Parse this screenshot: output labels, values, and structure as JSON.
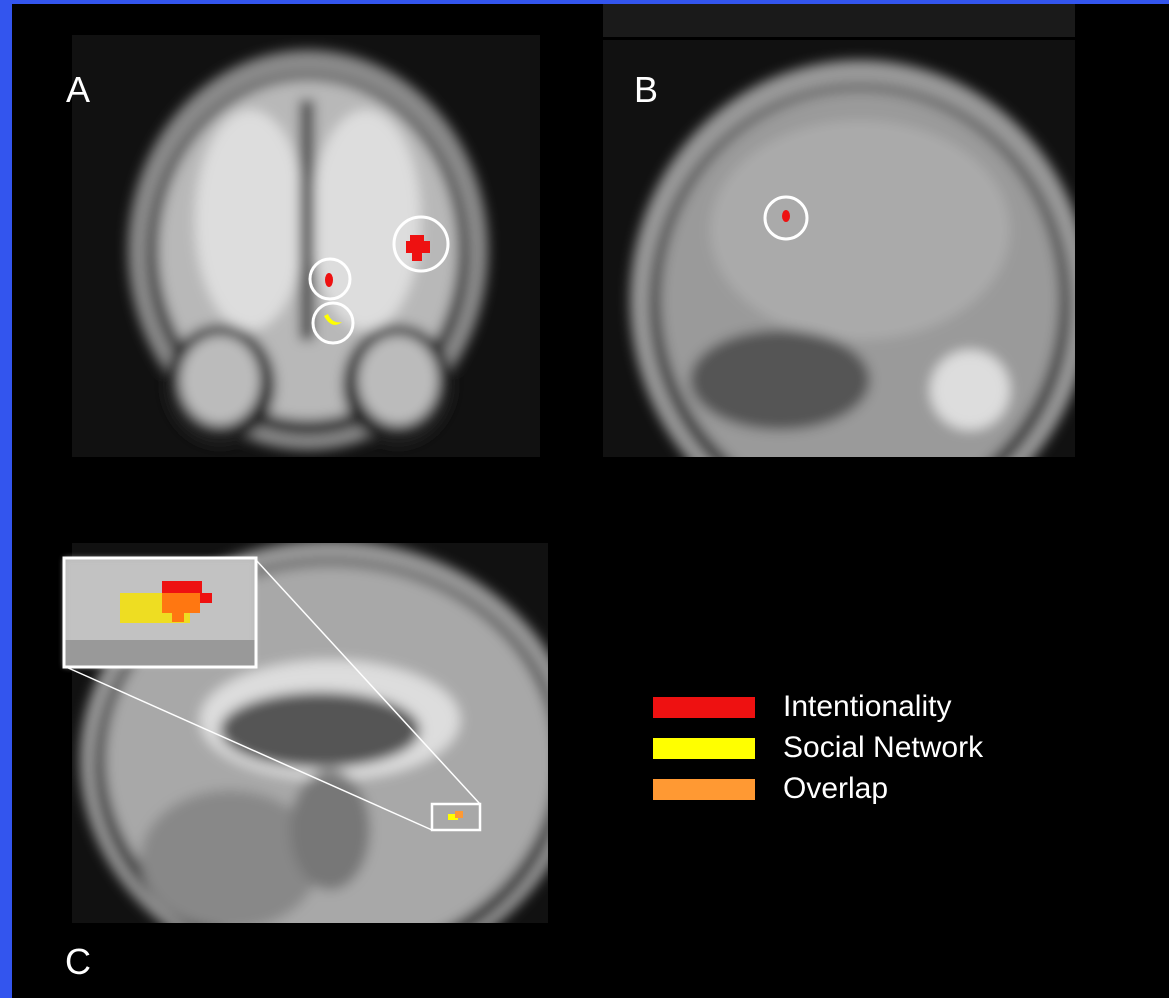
{
  "panels": [
    {
      "label": "A"
    },
    {
      "label": "B"
    },
    {
      "label": "C"
    }
  ],
  "legend": [
    {
      "label": "Intentionality",
      "color": "#ee1111"
    },
    {
      "label": "Social Network",
      "color": "#ffff00"
    },
    {
      "label": "Overlap",
      "color": "#ff9933"
    }
  ]
}
